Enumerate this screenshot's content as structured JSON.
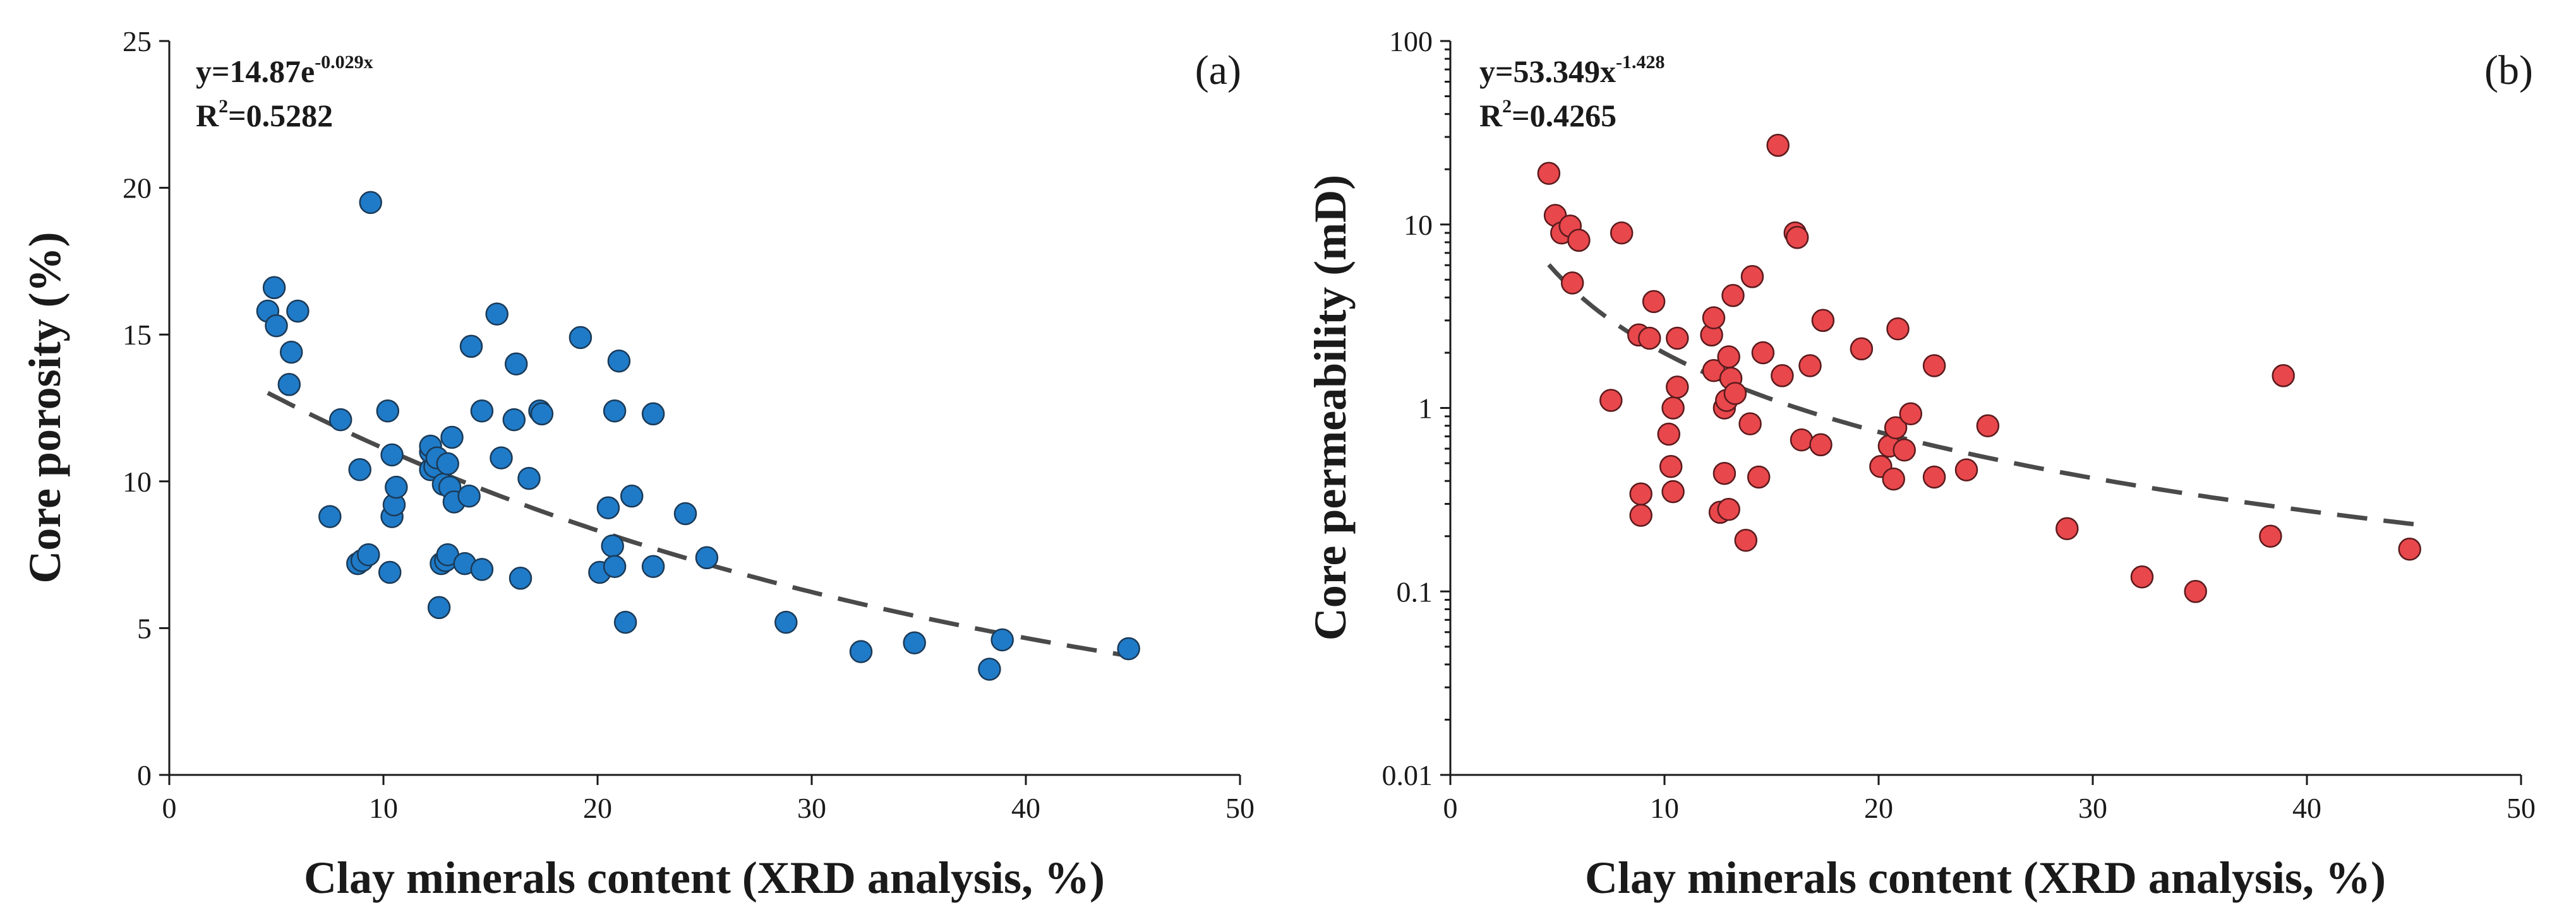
{
  "chart_data": [
    {
      "type": "scatter",
      "panel_label": "(a)",
      "title": "",
      "xlabel": "Clay minerals content (XRD analysis, %)",
      "ylabel": "Core porosity (%)",
      "xlim": [
        0,
        50
      ],
      "ylim": [
        0,
        25
      ],
      "yscale": "linear",
      "xticks": [
        0,
        10,
        20,
        30,
        40,
        50
      ],
      "yticks": [
        0,
        5,
        10,
        15,
        20,
        25
      ],
      "xtick_labels": [
        "0",
        "10",
        "20",
        "30",
        "40",
        "50"
      ],
      "ytick_labels": [
        "0",
        "5",
        "10",
        "15",
        "20",
        "25"
      ],
      "marker_color": "#1f7bc8",
      "marker_edge": "#1b3a57",
      "equation": {
        "main": "y=14.87e",
        "exp": "-0.029x"
      },
      "r2": {
        "r": "R",
        "sup": "2",
        "rest": "=0.5282"
      },
      "fit": {
        "model": "exp",
        "a": 14.87,
        "b": -0.029,
        "x_range": [
          4.6,
          45
        ]
      },
      "points": [
        [
          4.6,
          15.8
        ],
        [
          4.9,
          16.6
        ],
        [
          5.0,
          15.3
        ],
        [
          5.6,
          13.3
        ],
        [
          5.7,
          14.4
        ],
        [
          6.0,
          15.8
        ],
        [
          7.5,
          8.8
        ],
        [
          8.0,
          12.1
        ],
        [
          8.8,
          7.2
        ],
        [
          8.9,
          10.4
        ],
        [
          9.0,
          7.3
        ],
        [
          9.3,
          7.5
        ],
        [
          9.4,
          19.5
        ],
        [
          10.2,
          12.4
        ],
        [
          10.3,
          6.9
        ],
        [
          10.4,
          10.9
        ],
        [
          10.4,
          8.8
        ],
        [
          10.5,
          9.2
        ],
        [
          10.6,
          9.8
        ],
        [
          12.2,
          10.4
        ],
        [
          12.2,
          11.0
        ],
        [
          12.2,
          11.2
        ],
        [
          12.4,
          10.5
        ],
        [
          12.5,
          10.8
        ],
        [
          12.6,
          5.7
        ],
        [
          12.7,
          7.2
        ],
        [
          12.8,
          9.9
        ],
        [
          12.9,
          7.3
        ],
        [
          13.0,
          10.6
        ],
        [
          13.0,
          7.5
        ],
        [
          13.1,
          9.8
        ],
        [
          13.2,
          11.5
        ],
        [
          13.3,
          9.3
        ],
        [
          13.8,
          7.2
        ],
        [
          14.0,
          9.5
        ],
        [
          14.1,
          14.6
        ],
        [
          14.6,
          12.4
        ],
        [
          14.6,
          7.0
        ],
        [
          15.3,
          15.7
        ],
        [
          15.5,
          10.8
        ],
        [
          16.1,
          12.1
        ],
        [
          16.2,
          14.0
        ],
        [
          16.4,
          6.7
        ],
        [
          16.8,
          10.1
        ],
        [
          17.3,
          12.4
        ],
        [
          17.4,
          12.3
        ],
        [
          19.2,
          14.9
        ],
        [
          20.1,
          6.9
        ],
        [
          20.5,
          9.1
        ],
        [
          20.7,
          7.8
        ],
        [
          20.8,
          7.1
        ],
        [
          20.8,
          12.4
        ],
        [
          21.0,
          14.1
        ],
        [
          21.3,
          5.2
        ],
        [
          21.6,
          9.5
        ],
        [
          22.6,
          12.3
        ],
        [
          22.6,
          7.1
        ],
        [
          24.1,
          8.9
        ],
        [
          25.1,
          7.4
        ],
        [
          28.8,
          5.2
        ],
        [
          32.3,
          4.2
        ],
        [
          34.8,
          4.5
        ],
        [
          38.3,
          3.6
        ],
        [
          38.9,
          4.6
        ],
        [
          44.8,
          4.3
        ]
      ]
    },
    {
      "type": "scatter",
      "panel_label": "(b)",
      "title": "",
      "xlabel": "Clay minerals content (XRD analysis, %)",
      "ylabel": "Core permeability (mD)",
      "xlim": [
        0,
        50
      ],
      "ylim": [
        0.01,
        100
      ],
      "yscale": "log",
      "xticks": [
        0,
        10,
        20,
        30,
        40,
        50
      ],
      "yticks": [
        0.01,
        0.1,
        1,
        10,
        100
      ],
      "xtick_labels": [
        "0",
        "10",
        "20",
        "30",
        "40",
        "50"
      ],
      "ytick_labels": [
        "0.01",
        "0.1",
        "1",
        "10",
        "100"
      ],
      "marker_color": "#e8474c",
      "marker_edge": "#5a1a1c",
      "equation": {
        "main": "y=53.349x",
        "exp": "-1.428"
      },
      "r2": {
        "r": "R",
        "sup": "2",
        "rest": "=0.4265"
      },
      "fit": {
        "model": "power",
        "a": 53.349,
        "b": -1.428,
        "x_range": [
          4.6,
          45
        ]
      },
      "points": [
        [
          4.6,
          19.0
        ],
        [
          4.9,
          11.2
        ],
        [
          5.2,
          9.0
        ],
        [
          5.6,
          9.8
        ],
        [
          5.7,
          4.8
        ],
        [
          6.0,
          8.2
        ],
        [
          7.5,
          1.1
        ],
        [
          8.0,
          9.0
        ],
        [
          8.8,
          2.5
        ],
        [
          8.9,
          0.26
        ],
        [
          8.9,
          0.34
        ],
        [
          9.3,
          2.4
        ],
        [
          9.5,
          3.8
        ],
        [
          10.2,
          0.72
        ],
        [
          10.3,
          0.48
        ],
        [
          10.4,
          0.35
        ],
        [
          10.4,
          1.0
        ],
        [
          10.6,
          1.3
        ],
        [
          10.6,
          2.4
        ],
        [
          12.2,
          2.5
        ],
        [
          12.3,
          3.1
        ],
        [
          12.3,
          1.6
        ],
        [
          12.6,
          0.27
        ],
        [
          12.8,
          0.44
        ],
        [
          12.8,
          1.0
        ],
        [
          12.9,
          1.1
        ],
        [
          13.0,
          0.28
        ],
        [
          13.0,
          1.9
        ],
        [
          13.1,
          1.45
        ],
        [
          13.2,
          4.1
        ],
        [
          13.3,
          1.2
        ],
        [
          13.8,
          0.19
        ],
        [
          14.0,
          0.82
        ],
        [
          14.1,
          5.2
        ],
        [
          14.4,
          0.42
        ],
        [
          14.6,
          2.0
        ],
        [
          15.3,
          27.0
        ],
        [
          15.5,
          1.5
        ],
        [
          16.1,
          9.0
        ],
        [
          16.2,
          8.5
        ],
        [
          16.4,
          0.67
        ],
        [
          16.8,
          1.7
        ],
        [
          17.3,
          0.63
        ],
        [
          17.4,
          3.0
        ],
        [
          19.2,
          2.1
        ],
        [
          20.1,
          0.48
        ],
        [
          20.5,
          0.62
        ],
        [
          20.7,
          0.41
        ],
        [
          20.8,
          0.78
        ],
        [
          20.9,
          2.7
        ],
        [
          21.2,
          0.59
        ],
        [
          21.5,
          0.93
        ],
        [
          22.6,
          1.7
        ],
        [
          22.6,
          0.42
        ],
        [
          24.1,
          0.46
        ],
        [
          25.1,
          0.8
        ],
        [
          28.8,
          0.22
        ],
        [
          32.3,
          0.12
        ],
        [
          34.8,
          0.1
        ],
        [
          38.3,
          0.2
        ],
        [
          38.9,
          1.5
        ],
        [
          44.8,
          0.17
        ]
      ]
    }
  ]
}
